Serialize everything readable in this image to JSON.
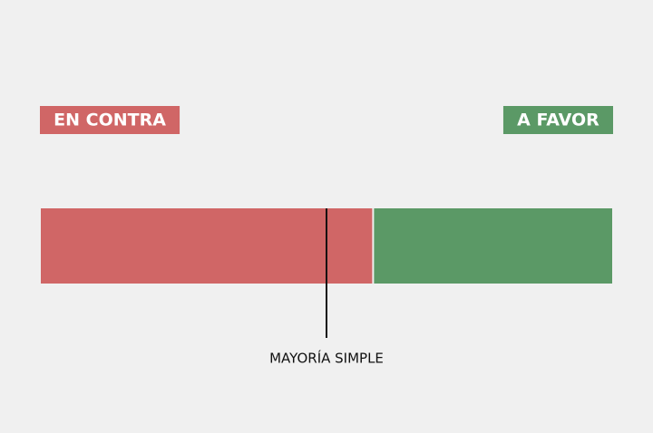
{
  "chart_data": {
    "type": "bar",
    "orientation": "horizontal",
    "stacked": true,
    "xlim": [
      0,
      100
    ],
    "series": [
      {
        "name": "EN CONTRA",
        "color": "#d06666",
        "values": [
          58
        ]
      },
      {
        "name": "A FAVOR",
        "color": "#5b9966",
        "values": [
          42
        ]
      }
    ],
    "annotation": {
      "text": "MAYORÍA SIMPLE",
      "value": 50
    }
  }
}
